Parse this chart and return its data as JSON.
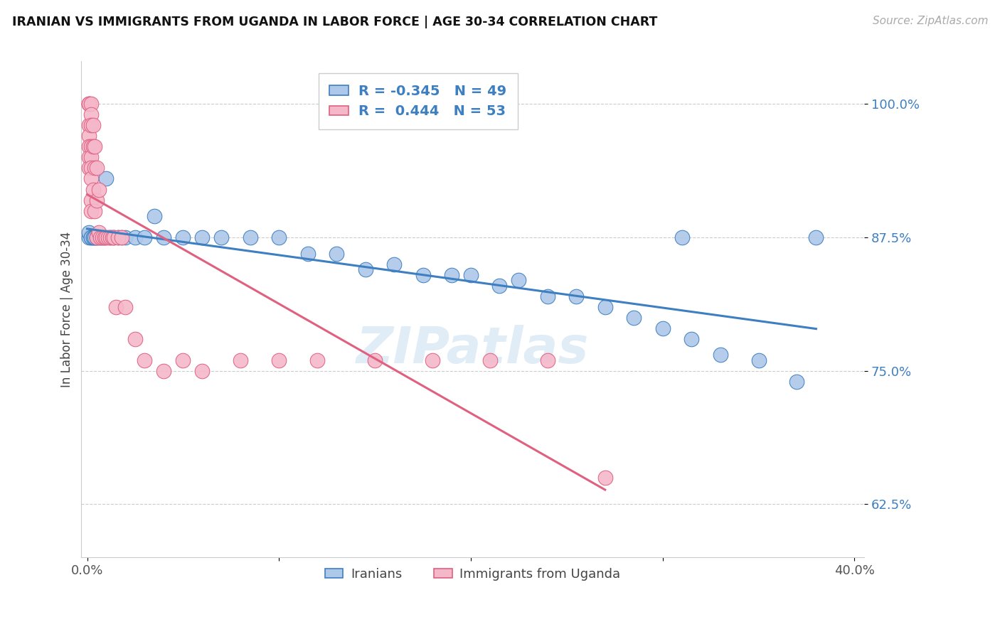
{
  "title": "IRANIAN VS IMMIGRANTS FROM UGANDA IN LABOR FORCE | AGE 30-34 CORRELATION CHART",
  "source": "Source: ZipAtlas.com",
  "ylabel": "In Labor Force | Age 30-34",
  "xlabel_iranians": "Iranians",
  "xlabel_uganda": "Immigrants from Uganda",
  "xmin": 0.0,
  "xmax": 0.4,
  "ymin": 0.575,
  "ymax": 1.04,
  "yticks": [
    0.625,
    0.75,
    0.875,
    1.0
  ],
  "ytick_labels": [
    "62.5%",
    "75.0%",
    "87.5%",
    "100.0%"
  ],
  "xticks": [
    0.0,
    0.1,
    0.2,
    0.3,
    0.4
  ],
  "xtick_labels": [
    "0.0%",
    "",
    "",
    "",
    "40.0%"
  ],
  "legend_R_blue": "-0.345",
  "legend_N_blue": "49",
  "legend_R_pink": "0.444",
  "legend_N_pink": "53",
  "blue_color": "#adc8e8",
  "pink_color": "#f5b8cb",
  "blue_line_color": "#3d7fc1",
  "pink_line_color": "#e06080",
  "watermark": "ZIPatlas",
  "iran_x": [
    0.001,
    0.001,
    0.002,
    0.002,
    0.003,
    0.003,
    0.004,
    0.004,
    0.005,
    0.005,
    0.006,
    0.007,
    0.008,
    0.009,
    0.01,
    0.012,
    0.014,
    0.016,
    0.018,
    0.02,
    0.025,
    0.03,
    0.035,
    0.04,
    0.05,
    0.06,
    0.07,
    0.085,
    0.1,
    0.115,
    0.13,
    0.145,
    0.16,
    0.175,
    0.19,
    0.2,
    0.215,
    0.225,
    0.24,
    0.255,
    0.27,
    0.285,
    0.3,
    0.315,
    0.33,
    0.35,
    0.37,
    0.31,
    0.38
  ],
  "iran_y": [
    0.875,
    0.88,
    0.875,
    0.875,
    0.875,
    0.875,
    0.875,
    0.875,
    0.875,
    0.875,
    0.875,
    0.875,
    0.875,
    0.875,
    0.93,
    0.875,
    0.875,
    0.875,
    0.875,
    0.875,
    0.875,
    0.875,
    0.895,
    0.875,
    0.875,
    0.875,
    0.875,
    0.875,
    0.875,
    0.86,
    0.86,
    0.845,
    0.85,
    0.84,
    0.84,
    0.84,
    0.83,
    0.835,
    0.82,
    0.82,
    0.81,
    0.8,
    0.79,
    0.78,
    0.765,
    0.76,
    0.74,
    0.875,
    0.875
  ],
  "uganda_x": [
    0.001,
    0.001,
    0.001,
    0.001,
    0.001,
    0.001,
    0.001,
    0.001,
    0.002,
    0.002,
    0.002,
    0.002,
    0.002,
    0.002,
    0.002,
    0.002,
    0.002,
    0.003,
    0.003,
    0.003,
    0.004,
    0.004,
    0.004,
    0.005,
    0.005,
    0.005,
    0.006,
    0.006,
    0.007,
    0.008,
    0.009,
    0.01,
    0.011,
    0.012,
    0.013,
    0.014,
    0.015,
    0.016,
    0.018,
    0.02,
    0.025,
    0.03,
    0.04,
    0.05,
    0.06,
    0.08,
    0.1,
    0.12,
    0.15,
    0.18,
    0.21,
    0.24,
    0.27
  ],
  "uganda_y": [
    1.0,
    1.0,
    1.0,
    0.98,
    0.97,
    0.96,
    0.95,
    0.94,
    1.0,
    0.99,
    0.98,
    0.96,
    0.95,
    0.94,
    0.93,
    0.91,
    0.9,
    0.98,
    0.96,
    0.92,
    0.96,
    0.94,
    0.9,
    0.94,
    0.91,
    0.875,
    0.92,
    0.88,
    0.875,
    0.875,
    0.875,
    0.875,
    0.875,
    0.875,
    0.875,
    0.875,
    0.81,
    0.875,
    0.875,
    0.81,
    0.78,
    0.76,
    0.75,
    0.76,
    0.75,
    0.76,
    0.76,
    0.76,
    0.76,
    0.76,
    0.76,
    0.76,
    0.65
  ]
}
